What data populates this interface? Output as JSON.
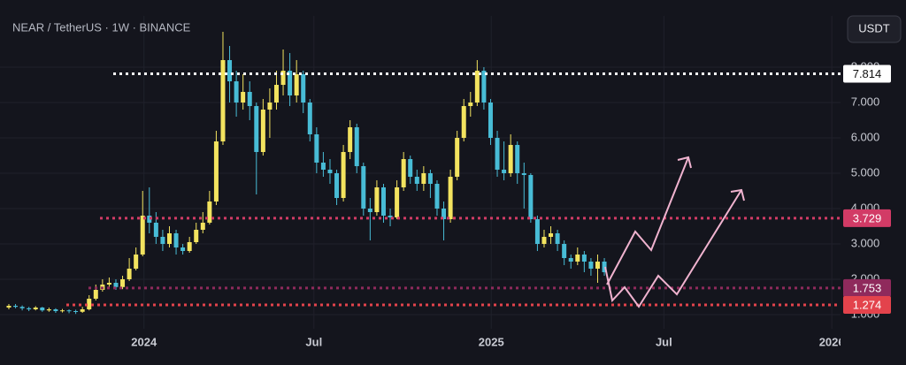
{
  "chart_data": {
    "type": "candlestick",
    "title": "NEAR / TetherUS · 1W · BINANCE",
    "currency_button": "USDT",
    "up_color": "#f3e35f",
    "down_color": "#48bcd6",
    "open": [
      1.2,
      1.25,
      1.22,
      1.18,
      1.15,
      1.2,
      1.12,
      1.15,
      1.1,
      1.12,
      1.1,
      1.08,
      1.15,
      1.45,
      1.7,
      1.85,
      1.9,
      1.78,
      2.0,
      2.3,
      2.7,
      3.8,
      3.6,
      3.2,
      3.0,
      3.3,
      2.9,
      2.8,
      3.05,
      3.4,
      3.6,
      4.2,
      5.9,
      8.2,
      7.6,
      7.0,
      7.3,
      6.9,
      5.6,
      6.8,
      7.0,
      7.5,
      7.9,
      7.2,
      7.8,
      7.0,
      6.1,
      5.3,
      5.1,
      5.0,
      4.3,
      5.6,
      6.3,
      5.2,
      4.0,
      3.9,
      4.6,
      3.8,
      3.75,
      4.6,
      5.4,
      4.9,
      4.7,
      5.0,
      4.7,
      4.0,
      3.7,
      4.9,
      6.0,
      6.9,
      7.0,
      7.9,
      7.0,
      6.0,
      5.1,
      5.0,
      5.8,
      5.0,
      4.95,
      3.7,
      3.0,
      3.2,
      3.3,
      3.0,
      2.6,
      2.5,
      2.7,
      2.5,
      2.3,
      2.5
    ],
    "high": [
      1.3,
      1.3,
      1.26,
      1.22,
      1.24,
      1.22,
      1.2,
      1.18,
      1.16,
      1.15,
      1.14,
      1.22,
      1.55,
      1.85,
      2.0,
      2.05,
      2.0,
      2.1,
      2.6,
      2.9,
      4.5,
      4.6,
      3.9,
      3.4,
      3.5,
      3.4,
      3.0,
      3.2,
      3.6,
      3.9,
      4.5,
      6.2,
      9.0,
      8.6,
      7.9,
      7.8,
      7.6,
      7.0,
      7.1,
      7.4,
      7.9,
      8.5,
      8.4,
      8.2,
      7.9,
      7.1,
      6.3,
      5.6,
      5.4,
      5.1,
      5.8,
      6.5,
      6.4,
      5.3,
      4.3,
      4.8,
      4.7,
      4.0,
      4.8,
      5.6,
      5.5,
      5.1,
      5.2,
      5.1,
      4.8,
      4.2,
      5.1,
      6.2,
      7.1,
      7.3,
      8.2,
      8.0,
      7.1,
      6.2,
      5.9,
      6.1,
      5.9,
      5.3,
      5.0,
      3.8,
      3.4,
      3.5,
      3.4,
      3.1,
      2.7,
      2.9,
      2.8,
      2.6,
      2.7,
      2.6
    ],
    "low": [
      1.15,
      1.18,
      1.12,
      1.1,
      1.12,
      1.08,
      1.08,
      1.05,
      1.06,
      1.04,
      1.02,
      1.05,
      1.12,
      1.4,
      1.65,
      1.75,
      1.7,
      1.72,
      1.95,
      2.25,
      2.65,
      3.3,
      3.0,
      2.8,
      2.9,
      2.7,
      2.7,
      2.75,
      3.0,
      3.3,
      3.55,
      4.1,
      5.8,
      7.0,
      6.6,
      6.8,
      6.5,
      4.4,
      5.5,
      6.0,
      6.8,
      7.2,
      6.9,
      7.0,
      6.7,
      5.9,
      5.0,
      4.9,
      4.7,
      4.1,
      4.2,
      5.4,
      5.0,
      3.8,
      3.1,
      3.8,
      3.6,
      3.5,
      3.7,
      4.5,
      4.7,
      4.5,
      4.5,
      4.3,
      3.8,
      3.1,
      3.6,
      4.8,
      5.9,
      6.6,
      6.9,
      6.8,
      5.8,
      4.9,
      4.8,
      4.9,
      4.7,
      4.0,
      3.6,
      2.8,
      2.9,
      3.0,
      2.8,
      2.4,
      2.3,
      2.4,
      2.2,
      2.1,
      1.9,
      2.1
    ],
    "close": [
      1.25,
      1.22,
      1.18,
      1.15,
      1.2,
      1.12,
      1.15,
      1.1,
      1.12,
      1.1,
      1.08,
      1.15,
      1.45,
      1.7,
      1.85,
      1.9,
      1.78,
      2.0,
      2.3,
      2.7,
      3.8,
      3.6,
      3.2,
      3.0,
      3.3,
      2.9,
      2.8,
      3.05,
      3.4,
      3.6,
      4.2,
      5.9,
      8.2,
      7.6,
      7.0,
      7.3,
      6.9,
      5.6,
      6.8,
      7.0,
      7.5,
      7.9,
      7.2,
      7.8,
      7.0,
      6.1,
      5.3,
      5.1,
      5.0,
      4.3,
      5.6,
      6.3,
      5.2,
      4.0,
      3.9,
      4.6,
      3.8,
      3.75,
      4.6,
      5.4,
      4.9,
      4.7,
      5.0,
      4.7,
      4.0,
      3.7,
      4.9,
      6.0,
      6.9,
      7.0,
      7.9,
      7.0,
      6.0,
      5.1,
      5.0,
      5.8,
      5.0,
      4.95,
      3.7,
      3.0,
      3.2,
      3.3,
      3.0,
      2.6,
      2.5,
      2.7,
      2.5,
      2.3,
      2.5,
      2.2
    ],
    "xlim": [
      -1.32,
      124.3
    ],
    "xticks": [
      {
        "value": 20.2,
        "label": "2024"
      },
      {
        "value": 45.6,
        "label": "Jul"
      },
      {
        "value": 72.1,
        "label": "2025"
      },
      {
        "value": 97.9,
        "label": "Jul"
      },
      {
        "value": 123.0,
        "label": "2026"
      }
    ],
    "ylim": [
      0.6,
      9.45
    ],
    "yticks": [
      {
        "value": 1,
        "label": "1.000"
      },
      {
        "value": 2,
        "label": "2.000"
      },
      {
        "value": 3,
        "label": "3.000"
      },
      {
        "value": 4,
        "label": "4.000"
      },
      {
        "value": 5,
        "label": "5.000"
      },
      {
        "value": 6,
        "label": "6.000"
      },
      {
        "value": 7,
        "label": "7.000"
      },
      {
        "value": 8,
        "label": "8.000"
      }
    ],
    "grid": true,
    "levels": [
      {
        "value": 7.814,
        "color": "#ffffff"
      },
      {
        "value": 3.729,
        "color": "#d23b66"
      },
      {
        "value": 1.753,
        "color": "#8f2a5c"
      },
      {
        "value": 1.274,
        "color": "#e3434c"
      }
    ]
  }
}
